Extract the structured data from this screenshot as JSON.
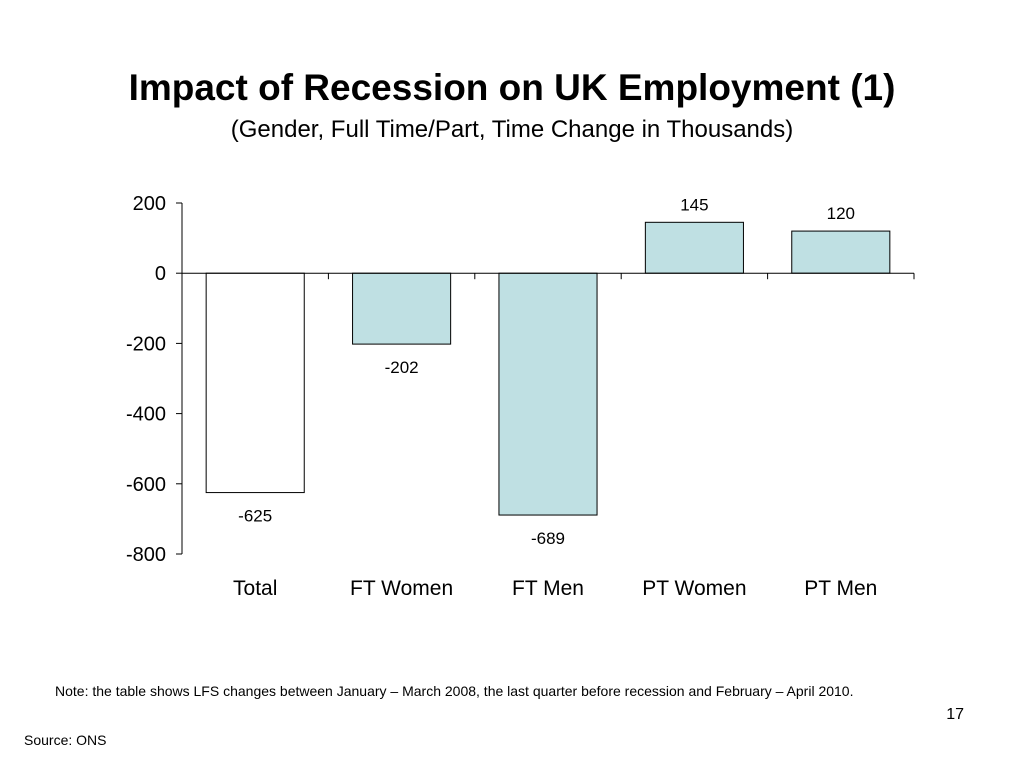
{
  "slide": {
    "note": "Note: the table shows LFS changes between January – March 2008, the last quarter before recession and February  – April 2010.",
    "page_number": "17",
    "source": "Source: ONS"
  },
  "chart_data": {
    "type": "bar",
    "title": "Impact of Recession on UK Employment (1)",
    "subtitle": "(Gender, Full Time/Part, Time Change in Thousands)",
    "categories": [
      "Total",
      "FT Women",
      "FT Men",
      "PT Women",
      "PT Men"
    ],
    "values": [
      -625,
      -202,
      -689,
      145,
      120
    ],
    "data_labels": [
      "-625",
      "-202",
      "-689",
      "145",
      "120"
    ],
    "bar_colors": [
      "#ffffff",
      "#bfe0e3",
      "#bfe0e3",
      "#bfe0e3",
      "#bfe0e3"
    ],
    "yticks": [
      200,
      0,
      -200,
      -400,
      -600,
      -800
    ],
    "ylim": [
      -800,
      200
    ],
    "xlabel": "",
    "ylabel": "",
    "grid": false,
    "legend": "none"
  }
}
